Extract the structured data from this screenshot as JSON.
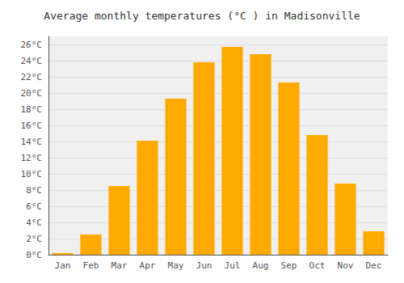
{
  "chart_data": {
    "type": "bar",
    "title": "Average monthly temperatures (°C ) in Madisonville",
    "categories": [
      "Jan",
      "Feb",
      "Mar",
      "Apr",
      "May",
      "Jun",
      "Jul",
      "Aug",
      "Sep",
      "Oct",
      "Nov",
      "Dec"
    ],
    "values": [
      0.2,
      2.5,
      8.5,
      14.1,
      19.3,
      23.8,
      25.7,
      24.8,
      21.3,
      14.8,
      8.8,
      2.9
    ],
    "color": "#FFAA00",
    "ylim": [
      0,
      27
    ],
    "yticks": [
      {
        "value": 0,
        "label": "0°C"
      },
      {
        "value": 2,
        "label": "2°C"
      },
      {
        "value": 4,
        "label": "4°C"
      },
      {
        "value": 6,
        "label": "6°C"
      },
      {
        "value": 8,
        "label": "8°C"
      },
      {
        "value": 10,
        "label": "10°C"
      },
      {
        "value": 12,
        "label": "12°C"
      },
      {
        "value": 14,
        "label": "14°C"
      },
      {
        "value": 16,
        "label": "16°C"
      },
      {
        "value": 18,
        "label": "18°C"
      },
      {
        "value": 20,
        "label": "20°C"
      },
      {
        "value": 22,
        "label": "22°C"
      },
      {
        "value": 24,
        "label": "24°C"
      },
      {
        "value": 26,
        "label": "26°C"
      }
    ],
    "grid": true
  }
}
